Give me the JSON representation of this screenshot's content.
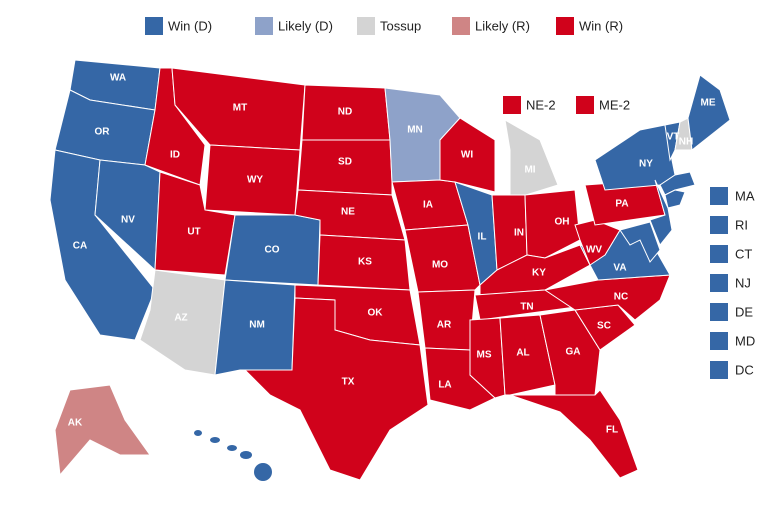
{
  "legend": [
    {
      "label": "Win (D)",
      "color": "#3567a6"
    },
    {
      "label": "Likely (D)",
      "color": "#8ea2c9"
    },
    {
      "label": "Tossup",
      "color": "#d4d4d4"
    },
    {
      "label": "Likely (R)",
      "color": "#cf8585"
    },
    {
      "label": "Win (R)",
      "color": "#d0021b"
    }
  ],
  "states": [
    {
      "label": "WA",
      "status": "Win (D)"
    },
    {
      "label": "OR",
      "status": "Win (D)"
    },
    {
      "label": "CA",
      "status": "Win (D)"
    },
    {
      "label": "NV",
      "status": "Win (D)"
    },
    {
      "label": "ID",
      "status": "Win (R)"
    },
    {
      "label": "MT",
      "status": "Win (R)"
    },
    {
      "label": "WY",
      "status": "Win (R)"
    },
    {
      "label": "UT",
      "status": "Win (R)"
    },
    {
      "label": "CO",
      "status": "Win (D)"
    },
    {
      "label": "AZ",
      "status": "Tossup"
    },
    {
      "label": "NM",
      "status": "Win (D)"
    },
    {
      "label": "ND",
      "status": "Win (R)"
    },
    {
      "label": "SD",
      "status": "Win (R)"
    },
    {
      "label": "NE",
      "status": "Win (R)"
    },
    {
      "label": "KS",
      "status": "Win (R)"
    },
    {
      "label": "OK",
      "status": "Win (R)"
    },
    {
      "label": "TX",
      "status": "Win (R)"
    },
    {
      "label": "MN",
      "status": "Likely (D)"
    },
    {
      "label": "IA",
      "status": "Win (R)"
    },
    {
      "label": "MO",
      "status": "Win (R)"
    },
    {
      "label": "AR",
      "status": "Win (R)"
    },
    {
      "label": "LA",
      "status": "Win (R)"
    },
    {
      "label": "WI",
      "status": "Win (R)"
    },
    {
      "label": "IL",
      "status": "Win (D)"
    },
    {
      "label": "MI",
      "status": "Tossup"
    },
    {
      "label": "IN",
      "status": "Win (R)"
    },
    {
      "label": "OH",
      "status": "Win (R)"
    },
    {
      "label": "KY",
      "status": "Win (R)"
    },
    {
      "label": "TN",
      "status": "Win (R)"
    },
    {
      "label": "MS",
      "status": "Win (R)"
    },
    {
      "label": "AL",
      "status": "Win (R)"
    },
    {
      "label": "GA",
      "status": "Win (R)"
    },
    {
      "label": "FL",
      "status": "Win (R)"
    },
    {
      "label": "SC",
      "status": "Win (R)"
    },
    {
      "label": "NC",
      "status": "Win (R)"
    },
    {
      "label": "VA",
      "status": "Win (D)"
    },
    {
      "label": "WV",
      "status": "Win (R)"
    },
    {
      "label": "PA",
      "status": "Win (R)"
    },
    {
      "label": "NY",
      "status": "Win (D)"
    },
    {
      "label": "VT",
      "status": "Win (D)"
    },
    {
      "label": "NH",
      "status": "Tossup"
    },
    {
      "label": "ME",
      "status": "Win (D)"
    },
    {
      "label": "AK",
      "status": "Likely (R)"
    }
  ],
  "districts": [
    {
      "label": "NE-2",
      "status": "Win (R)"
    },
    {
      "label": "ME-2",
      "status": "Win (R)"
    }
  ],
  "small_states": [
    {
      "label": "MA",
      "status": "Win (D)"
    },
    {
      "label": "RI",
      "status": "Win (D)"
    },
    {
      "label": "CT",
      "status": "Win (D)"
    },
    {
      "label": "NJ",
      "status": "Win (D)"
    },
    {
      "label": "DE",
      "status": "Win (D)"
    },
    {
      "label": "MD",
      "status": "Win (D)"
    },
    {
      "label": "DC",
      "status": "Win (D)"
    }
  ]
}
